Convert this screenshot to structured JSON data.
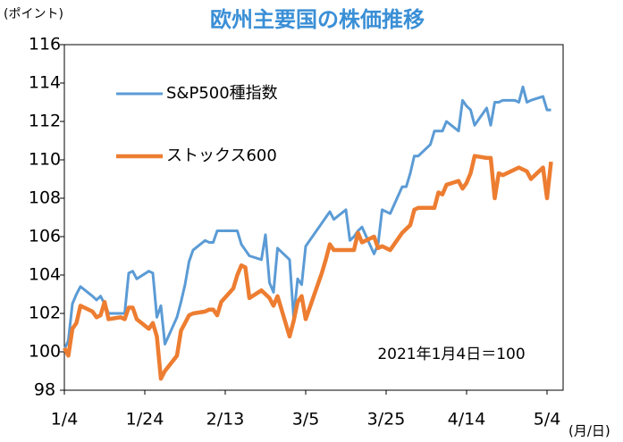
{
  "chart_data": {
    "type": "line",
    "title": "欧州主要国の株価推移",
    "y_label": "(ポイント)",
    "x_label": "(月/日)",
    "annotation": "2021年1月4日＝100",
    "x": [
      "1/4",
      "1/5",
      "1/6",
      "1/7",
      "1/8",
      "1/11",
      "1/12",
      "1/13",
      "1/14",
      "1/15",
      "1/18",
      "1/19",
      "1/20",
      "1/21",
      "1/22",
      "1/25",
      "1/26",
      "1/27",
      "1/28",
      "1/29",
      "2/1",
      "2/2",
      "2/3",
      "2/4",
      "2/5",
      "2/8",
      "2/9",
      "2/10",
      "2/11",
      "2/12",
      "2/15",
      "2/16",
      "2/17",
      "2/18",
      "2/19",
      "2/22",
      "2/23",
      "2/24",
      "2/25",
      "2/26",
      "3/1",
      "3/2",
      "3/3",
      "3/4",
      "3/5",
      "3/8",
      "3/9",
      "3/10",
      "3/11",
      "3/12",
      "3/15",
      "3/16",
      "3/17",
      "3/18",
      "3/19",
      "3/22",
      "3/23",
      "3/24",
      "3/25",
      "3/26",
      "3/29",
      "3/30",
      "3/31",
      "4/1",
      "4/2",
      "4/5",
      "4/6",
      "4/7",
      "4/8",
      "4/9",
      "4/12",
      "4/13",
      "4/14",
      "4/15",
      "4/16",
      "4/19",
      "4/20",
      "4/21",
      "4/22",
      "4/23",
      "4/26",
      "4/27",
      "4/28",
      "4/29",
      "4/30",
      "5/3",
      "5/4",
      "5/5"
    ],
    "series": [
      {
        "name": "S&P500種指数",
        "color": "#5b9bd5",
        "width": 3,
        "values": [
          100.1,
          100.6,
          102.5,
          103.0,
          103.4,
          102.9,
          102.7,
          102.9,
          102.5,
          102.0,
          102.0,
          102.0,
          104.1,
          104.2,
          103.8,
          104.2,
          104.1,
          101.8,
          102.4,
          100.4,
          101.8,
          102.6,
          103.5,
          104.7,
          105.3,
          105.8,
          105.7,
          105.7,
          106.3,
          106.3,
          106.3,
          106.3,
          105.6,
          105.3,
          105.0,
          104.8,
          106.1,
          103.6,
          103.1,
          105.4,
          104.8,
          101.8,
          103.8,
          103.5,
          105.5,
          106.4,
          106.7,
          107.0,
          107.3,
          106.9,
          107.4,
          105.8,
          106.0,
          106.3,
          106.5,
          105.1,
          105.6,
          107.4,
          107.3,
          107.2,
          108.6,
          108.6,
          109.3,
          110.2,
          110.2,
          110.8,
          111.5,
          111.5,
          111.5,
          112.0,
          111.5,
          113.1,
          112.8,
          112.6,
          111.8,
          112.7,
          111.8,
          113.0,
          113.0,
          113.1,
          113.1,
          113.0,
          113.8,
          113.0,
          113.1,
          113.3,
          112.6,
          112.6
        ]
      },
      {
        "name": "ストックス600",
        "color": "#ed7d31",
        "width": 4.5,
        "values": [
          100.2,
          99.8,
          101.2,
          101.5,
          102.4,
          102.1,
          101.8,
          101.9,
          102.6,
          101.7,
          101.8,
          101.7,
          102.3,
          102.3,
          101.7,
          101.2,
          101.5,
          100.8,
          98.6,
          99.0,
          99.8,
          101.1,
          101.5,
          101.9,
          102.0,
          102.1,
          102.2,
          102.2,
          101.9,
          102.6,
          103.3,
          104.0,
          104.5,
          104.4,
          102.8,
          103.2,
          103.0,
          102.8,
          102.4,
          102.9,
          100.8,
          101.6,
          102.6,
          102.9,
          101.7,
          103.5,
          104.1,
          104.8,
          105.6,
          105.3,
          105.3,
          105.3,
          105.3,
          106.2,
          105.7,
          106.0,
          105.4,
          105.5,
          105.4,
          105.3,
          106.2,
          106.4,
          106.6,
          107.4,
          107.5,
          107.5,
          107.5,
          108.3,
          108.2,
          108.7,
          108.9,
          108.5,
          108.8,
          109.3,
          110.2,
          110.1,
          110.1,
          108.0,
          109.3,
          109.2,
          109.5,
          109.6,
          109.5,
          109.4,
          109.0,
          109.6,
          108.0,
          109.9
        ]
      }
    ],
    "xlim": [
      "1/4",
      "5/8"
    ],
    "xticks": [
      "1/4",
      "1/24",
      "2/13",
      "3/5",
      "3/25",
      "4/14",
      "5/4"
    ],
    "ylim": [
      98,
      116
    ],
    "yticks": [
      98,
      100,
      102,
      104,
      106,
      108,
      110,
      112,
      114,
      116
    ],
    "grid": false
  }
}
